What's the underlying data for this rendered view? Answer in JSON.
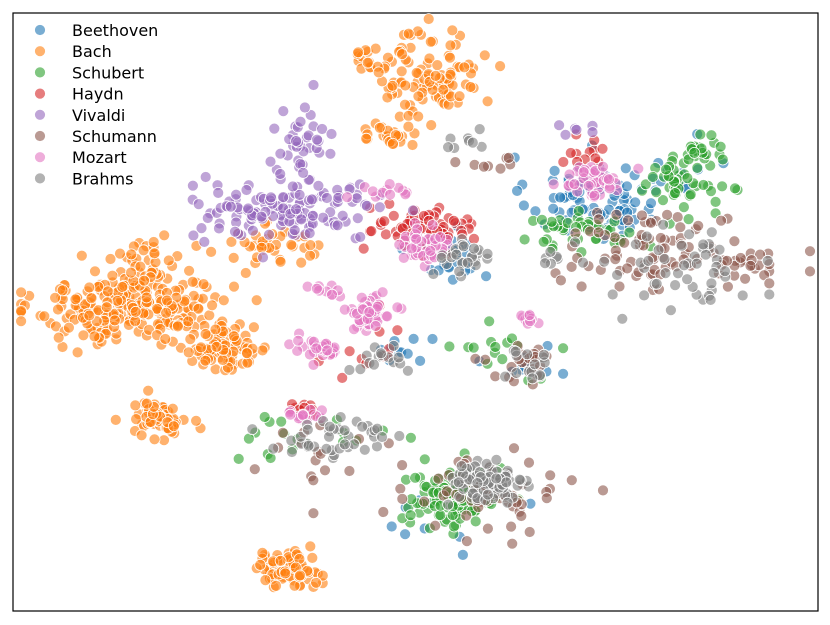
{
  "chart_data": {
    "type": "scatter",
    "title": "",
    "xlabel": "",
    "ylabel": "",
    "xlim": [
      0,
      100
    ],
    "ylim": [
      0,
      100
    ],
    "axes_ticks_visible": false,
    "grid": false,
    "legend_position": "top-left",
    "series": [
      {
        "name": "Beethoven",
        "color": "#1f77b4",
        "clusters": [
          {
            "cx": 72,
            "cy": 69,
            "sx": 4.0,
            "sy": 3.5,
            "n": 90
          },
          {
            "cx": 54,
            "cy": 60,
            "sx": 2.6,
            "sy": 2.2,
            "n": 25
          },
          {
            "cx": 48,
            "cy": 43,
            "sx": 2.0,
            "sy": 1.6,
            "n": 10
          },
          {
            "cx": 64,
            "cy": 42,
            "sx": 2.5,
            "sy": 2.0,
            "n": 10
          },
          {
            "cx": 53,
            "cy": 16,
            "sx": 3.5,
            "sy": 2.5,
            "n": 10
          },
          {
            "cx": 85,
            "cy": 72,
            "sx": 3.0,
            "sy": 3.0,
            "n": 8
          }
        ]
      },
      {
        "name": "Bach",
        "color": "#ff7f0e",
        "clusters": [
          {
            "cx": 15,
            "cy": 51,
            "sx": 6.0,
            "sy": 3.0,
            "n": 260
          },
          {
            "cx": 26,
            "cy": 44,
            "sx": 3.0,
            "sy": 2.0,
            "n": 90
          },
          {
            "cx": 18,
            "cy": 32,
            "sx": 1.8,
            "sy": 1.6,
            "n": 60
          },
          {
            "cx": 17,
            "cy": 59,
            "sx": 2.0,
            "sy": 2.0,
            "n": 30
          },
          {
            "cx": 34,
            "cy": 7,
            "sx": 2.1,
            "sy": 1.5,
            "n": 70
          },
          {
            "cx": 52,
            "cy": 90,
            "sx": 3.0,
            "sy": 4.0,
            "n": 100
          },
          {
            "cx": 44,
            "cy": 92,
            "sx": 1.2,
            "sy": 1.0,
            "n": 15
          },
          {
            "cx": 47,
            "cy": 80,
            "sx": 2.2,
            "sy": 1.2,
            "n": 25
          },
          {
            "cx": 32,
            "cy": 61,
            "sx": 3.2,
            "sy": 1.6,
            "n": 40
          }
        ]
      },
      {
        "name": "Schubert",
        "color": "#2ca02c",
        "clusters": [
          {
            "cx": 55,
            "cy": 19,
            "sx": 3.0,
            "sy": 2.6,
            "n": 120
          },
          {
            "cx": 83,
            "cy": 72,
            "sx": 2.4,
            "sy": 2.4,
            "n": 50
          },
          {
            "cx": 70,
            "cy": 63,
            "sx": 4.5,
            "sy": 2.0,
            "n": 40
          },
          {
            "cx": 39,
            "cy": 30,
            "sx": 5.0,
            "sy": 2.0,
            "n": 18
          },
          {
            "cx": 62,
            "cy": 44,
            "sx": 3.5,
            "sy": 2.0,
            "n": 15
          },
          {
            "cx": 85,
            "cy": 77,
            "sx": 1.6,
            "sy": 1.2,
            "n": 15
          }
        ]
      },
      {
        "name": "Haydn",
        "color": "#d62728",
        "clusters": [
          {
            "cx": 51,
            "cy": 64,
            "sx": 3.0,
            "sy": 2.0,
            "n": 70
          },
          {
            "cx": 36,
            "cy": 34,
            "sx": 1.2,
            "sy": 0.9,
            "n": 12
          },
          {
            "cx": 43,
            "cy": 45,
            "sx": 2.5,
            "sy": 2.5,
            "n": 15
          },
          {
            "cx": 72,
            "cy": 77,
            "sx": 1.8,
            "sy": 1.2,
            "n": 12
          }
        ]
      },
      {
        "name": "Vivaldi",
        "color": "#9467bd",
        "clusters": [
          {
            "cx": 34,
            "cy": 67,
            "sx": 6.0,
            "sy": 2.6,
            "n": 140
          },
          {
            "cx": 36,
            "cy": 78,
            "sx": 2.0,
            "sy": 3.0,
            "n": 35
          },
          {
            "cx": 71,
            "cy": 80,
            "sx": 1.6,
            "sy": 1.2,
            "n": 6
          }
        ]
      },
      {
        "name": "Schumann",
        "color": "#8c564b",
        "clusters": [
          {
            "cx": 79,
            "cy": 61,
            "sx": 6.0,
            "sy": 3.2,
            "n": 75
          },
          {
            "cx": 92,
            "cy": 58,
            "sx": 3.0,
            "sy": 1.5,
            "n": 25
          },
          {
            "cx": 58,
            "cy": 19,
            "sx": 5.0,
            "sy": 3.0,
            "n": 60
          },
          {
            "cx": 64,
            "cy": 41,
            "sx": 2.5,
            "sy": 1.8,
            "n": 25
          },
          {
            "cx": 38,
            "cy": 27,
            "sx": 3.5,
            "sy": 2.5,
            "n": 15
          },
          {
            "cx": 60,
            "cy": 75,
            "sx": 2.5,
            "sy": 1.0,
            "n": 8
          }
        ]
      },
      {
        "name": "Mozart",
        "color": "#e377c2",
        "clusters": [
          {
            "cx": 72,
            "cy": 72,
            "sx": 1.8,
            "sy": 1.4,
            "n": 45
          },
          {
            "cx": 44,
            "cy": 50,
            "sx": 1.6,
            "sy": 1.8,
            "n": 45
          },
          {
            "cx": 51,
            "cy": 61,
            "sx": 1.8,
            "sy": 1.5,
            "n": 45
          },
          {
            "cx": 38,
            "cy": 44,
            "sx": 2.0,
            "sy": 1.3,
            "n": 30
          },
          {
            "cx": 46,
            "cy": 70,
            "sx": 1.4,
            "sy": 0.8,
            "n": 12
          },
          {
            "cx": 36,
            "cy": 33,
            "sx": 1.4,
            "sy": 0.9,
            "n": 14
          },
          {
            "cx": 64,
            "cy": 49,
            "sx": 0.9,
            "sy": 0.6,
            "n": 10
          },
          {
            "cx": 38,
            "cy": 54,
            "sx": 1.0,
            "sy": 0.7,
            "n": 8
          }
        ]
      },
      {
        "name": "Brahms",
        "color": "#7f7f7f",
        "clusters": [
          {
            "cx": 59,
            "cy": 21,
            "sx": 2.5,
            "sy": 2.0,
            "n": 80
          },
          {
            "cx": 40,
            "cy": 29,
            "sx": 4.5,
            "sy": 2.0,
            "n": 40
          },
          {
            "cx": 56,
            "cy": 59,
            "sx": 2.0,
            "sy": 1.5,
            "n": 25
          },
          {
            "cx": 82,
            "cy": 57,
            "sx": 4.5,
            "sy": 3.5,
            "n": 50
          },
          {
            "cx": 46,
            "cy": 42,
            "sx": 2.0,
            "sy": 1.3,
            "n": 15
          },
          {
            "cx": 64,
            "cy": 41,
            "sx": 2.5,
            "sy": 1.5,
            "n": 15
          },
          {
            "cx": 56,
            "cy": 78,
            "sx": 2.0,
            "sy": 1.0,
            "n": 8
          },
          {
            "cx": 66,
            "cy": 59,
            "sx": 1.2,
            "sy": 0.8,
            "n": 6
          }
        ]
      }
    ]
  }
}
